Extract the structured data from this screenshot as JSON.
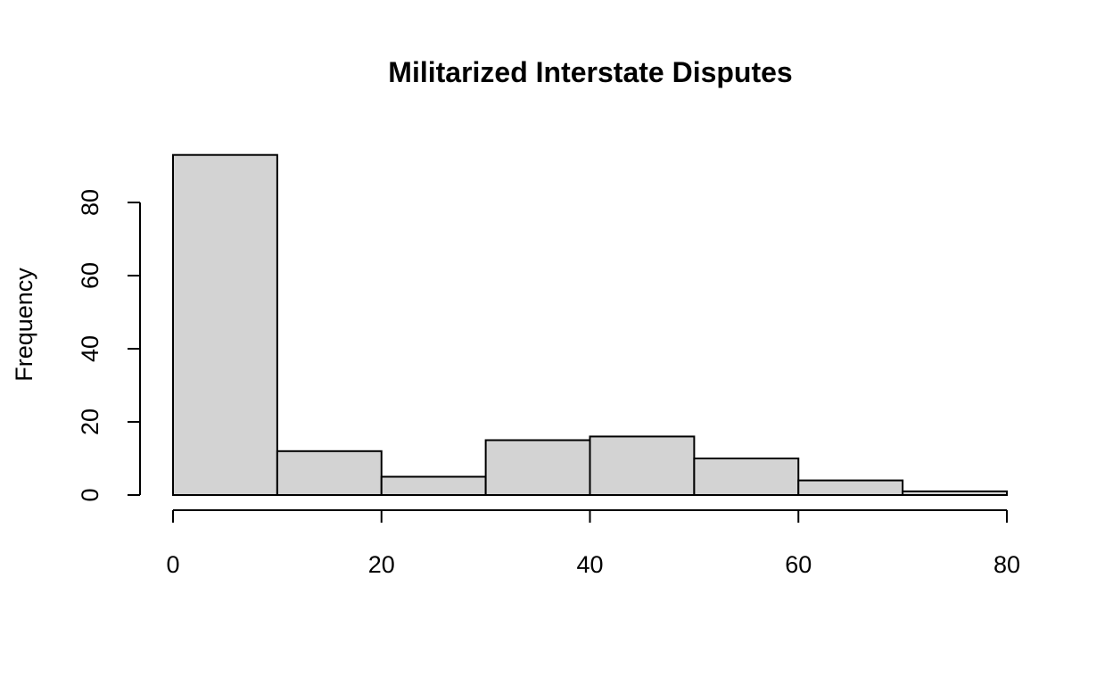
{
  "chart_data": {
    "type": "bar",
    "title": "Militarized Interstate Disputes",
    "xlabel": "",
    "ylabel": "Frequency",
    "bins": [
      {
        "start": 0,
        "end": 10,
        "count": 93
      },
      {
        "start": 10,
        "end": 20,
        "count": 12
      },
      {
        "start": 20,
        "end": 30,
        "count": 5
      },
      {
        "start": 30,
        "end": 40,
        "count": 15
      },
      {
        "start": 40,
        "end": 50,
        "count": 16
      },
      {
        "start": 50,
        "end": 60,
        "count": 10
      },
      {
        "start": 60,
        "end": 70,
        "count": 4
      },
      {
        "start": 70,
        "end": 80,
        "count": 1
      }
    ],
    "xlim": [
      0,
      80
    ],
    "ylim": [
      0,
      93
    ],
    "x_ticks": [
      0,
      20,
      40,
      60,
      80
    ],
    "x_tick_labels": [
      "0",
      "20",
      "40",
      "60",
      "80"
    ],
    "y_ticks": [
      0,
      20,
      40,
      60,
      80
    ],
    "y_tick_labels": [
      "0",
      "20",
      "40",
      "60",
      "80"
    ],
    "bar_color": "#d3d3d3",
    "grid": false,
    "legend": "none"
  }
}
